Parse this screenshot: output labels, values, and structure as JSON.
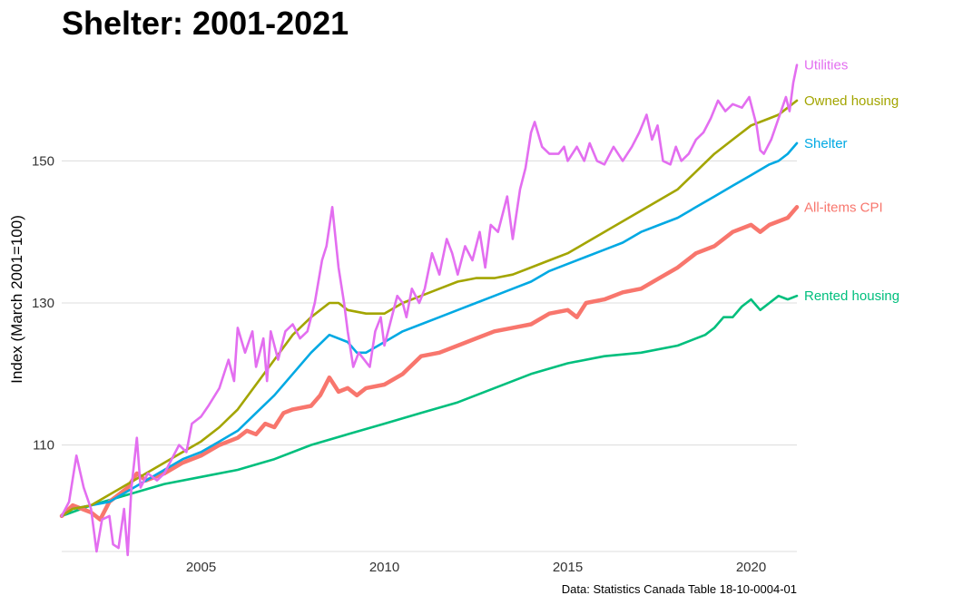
{
  "chart_data": {
    "type": "line",
    "title": "Shelter: 2001-2021",
    "ylabel": "Index (March 2001=100)",
    "xlabel": "",
    "caption": "Data: Statistics Canada Table 18-10-0004-01",
    "xlim": [
      2001.2,
      2021.25
    ],
    "ylim": [
      95,
      165
    ],
    "x_ticks": [
      2005,
      2010,
      2015,
      2020
    ],
    "y_ticks": [
      110,
      130,
      150
    ],
    "grid": "horizontal",
    "legend": "direct labels at right end of lines",
    "series": [
      {
        "name": "Utilities",
        "color": "#E36EF0",
        "points": [
          [
            2001.2,
            100
          ],
          [
            2001.4,
            102
          ],
          [
            2001.6,
            108.5
          ],
          [
            2001.8,
            104
          ],
          [
            2002.0,
            101
          ],
          [
            2002.15,
            95
          ],
          [
            2002.3,
            99.5
          ],
          [
            2002.5,
            100
          ],
          [
            2002.6,
            96
          ],
          [
            2002.75,
            95.5
          ],
          [
            2002.9,
            101
          ],
          [
            2003.0,
            94.5
          ],
          [
            2003.1,
            104
          ],
          [
            2003.25,
            111
          ],
          [
            2003.35,
            104
          ],
          [
            2003.55,
            106
          ],
          [
            2003.8,
            105
          ],
          [
            2004.0,
            106
          ],
          [
            2004.2,
            108
          ],
          [
            2004.4,
            110
          ],
          [
            2004.6,
            109
          ],
          [
            2004.75,
            113
          ],
          [
            2005.0,
            114
          ],
          [
            2005.2,
            115.5
          ],
          [
            2005.5,
            118
          ],
          [
            2005.75,
            122
          ],
          [
            2005.9,
            119
          ],
          [
            2006.0,
            126.5
          ],
          [
            2006.2,
            123
          ],
          [
            2006.4,
            126
          ],
          [
            2006.5,
            121
          ],
          [
            2006.7,
            125
          ],
          [
            2006.8,
            119
          ],
          [
            2006.9,
            126
          ],
          [
            2007.1,
            122
          ],
          [
            2007.3,
            126
          ],
          [
            2007.5,
            127
          ],
          [
            2007.7,
            125
          ],
          [
            2007.9,
            126
          ],
          [
            2008.1,
            130
          ],
          [
            2008.3,
            136
          ],
          [
            2008.42,
            138
          ],
          [
            2008.58,
            143.5
          ],
          [
            2008.75,
            135
          ],
          [
            2008.9,
            130
          ],
          [
            2009.0,
            126
          ],
          [
            2009.15,
            121
          ],
          [
            2009.3,
            123
          ],
          [
            2009.45,
            122
          ],
          [
            2009.6,
            121
          ],
          [
            2009.75,
            126
          ],
          [
            2009.9,
            128
          ],
          [
            2010.0,
            124
          ],
          [
            2010.15,
            127
          ],
          [
            2010.35,
            131
          ],
          [
            2010.5,
            130
          ],
          [
            2010.6,
            128
          ],
          [
            2010.75,
            132
          ],
          [
            2010.95,
            130
          ],
          [
            2011.1,
            132
          ],
          [
            2011.3,
            137
          ],
          [
            2011.5,
            134
          ],
          [
            2011.7,
            139
          ],
          [
            2011.85,
            137
          ],
          [
            2012.0,
            134
          ],
          [
            2012.2,
            138
          ],
          [
            2012.4,
            136
          ],
          [
            2012.6,
            140
          ],
          [
            2012.75,
            135
          ],
          [
            2012.9,
            141
          ],
          [
            2013.1,
            140
          ],
          [
            2013.35,
            145
          ],
          [
            2013.5,
            139
          ],
          [
            2013.7,
            146
          ],
          [
            2013.85,
            149
          ],
          [
            2014.0,
            154
          ],
          [
            2014.1,
            155.5
          ],
          [
            2014.3,
            152
          ],
          [
            2014.5,
            151
          ],
          [
            2014.75,
            151
          ],
          [
            2014.9,
            152
          ],
          [
            2015.0,
            150
          ],
          [
            2015.25,
            152
          ],
          [
            2015.45,
            150
          ],
          [
            2015.6,
            152.5
          ],
          [
            2015.8,
            150
          ],
          [
            2016.0,
            149.5
          ],
          [
            2016.25,
            152
          ],
          [
            2016.5,
            150
          ],
          [
            2016.75,
            152
          ],
          [
            2016.95,
            154
          ],
          [
            2017.15,
            156.5
          ],
          [
            2017.3,
            153
          ],
          [
            2017.45,
            155
          ],
          [
            2017.6,
            150
          ],
          [
            2017.8,
            149.5
          ],
          [
            2017.95,
            152
          ],
          [
            2018.1,
            150
          ],
          [
            2018.3,
            151
          ],
          [
            2018.5,
            153
          ],
          [
            2018.7,
            154
          ],
          [
            2018.9,
            156
          ],
          [
            2019.1,
            158.5
          ],
          [
            2019.3,
            157
          ],
          [
            2019.5,
            158
          ],
          [
            2019.75,
            157.5
          ],
          [
            2019.95,
            159
          ],
          [
            2020.15,
            155
          ],
          [
            2020.25,
            151.5
          ],
          [
            2020.35,
            151
          ],
          [
            2020.55,
            153
          ],
          [
            2020.75,
            156
          ],
          [
            2020.95,
            159
          ],
          [
            2021.05,
            157
          ],
          [
            2021.15,
            161
          ],
          [
            2021.25,
            163.5
          ]
        ]
      },
      {
        "name": "Owned housing",
        "color": "#A3A500",
        "points": [
          [
            2001.2,
            100
          ],
          [
            2001.5,
            101
          ],
          [
            2002.0,
            101.5
          ],
          [
            2002.5,
            103
          ],
          [
            2003.0,
            104.5
          ],
          [
            2003.5,
            106
          ],
          [
            2004.0,
            107.5
          ],
          [
            2004.5,
            109
          ],
          [
            2005.0,
            110.5
          ],
          [
            2005.5,
            112.5
          ],
          [
            2006.0,
            115
          ],
          [
            2006.5,
            118.5
          ],
          [
            2007.0,
            122
          ],
          [
            2007.5,
            125.5
          ],
          [
            2008.0,
            128
          ],
          [
            2008.5,
            130
          ],
          [
            2008.75,
            130
          ],
          [
            2009.0,
            129
          ],
          [
            2009.5,
            128.5
          ],
          [
            2010.0,
            128.5
          ],
          [
            2010.5,
            130
          ],
          [
            2011.0,
            131
          ],
          [
            2011.5,
            132
          ],
          [
            2012.0,
            133
          ],
          [
            2012.5,
            133.5
          ],
          [
            2013.0,
            133.5
          ],
          [
            2013.5,
            134
          ],
          [
            2014.0,
            135
          ],
          [
            2014.5,
            136
          ],
          [
            2015.0,
            137
          ],
          [
            2015.5,
            138.5
          ],
          [
            2016.0,
            140
          ],
          [
            2016.5,
            141.5
          ],
          [
            2017.0,
            143
          ],
          [
            2017.5,
            144.5
          ],
          [
            2018.0,
            146
          ],
          [
            2018.5,
            148.5
          ],
          [
            2019.0,
            151
          ],
          [
            2019.5,
            153
          ],
          [
            2020.0,
            155
          ],
          [
            2020.5,
            156
          ],
          [
            2020.75,
            156.5
          ],
          [
            2021.0,
            157.5
          ],
          [
            2021.25,
            158.5
          ]
        ]
      },
      {
        "name": "Shelter",
        "color": "#00A9E3",
        "points": [
          [
            2001.2,
            100
          ],
          [
            2001.5,
            101
          ],
          [
            2002.0,
            101.5
          ],
          [
            2002.5,
            102
          ],
          [
            2003.0,
            103.5
          ],
          [
            2003.5,
            105
          ],
          [
            2004.0,
            106.5
          ],
          [
            2004.5,
            108
          ],
          [
            2005.0,
            109
          ],
          [
            2005.5,
            110.5
          ],
          [
            2006.0,
            112
          ],
          [
            2006.5,
            114.5
          ],
          [
            2007.0,
            117
          ],
          [
            2007.5,
            120
          ],
          [
            2008.0,
            123
          ],
          [
            2008.5,
            125.5
          ],
          [
            2009.0,
            124.5
          ],
          [
            2009.25,
            123
          ],
          [
            2009.5,
            123
          ],
          [
            2010.0,
            124.5
          ],
          [
            2010.5,
            126
          ],
          [
            2011.0,
            127
          ],
          [
            2011.5,
            128
          ],
          [
            2012.0,
            129
          ],
          [
            2012.5,
            130
          ],
          [
            2013.0,
            131
          ],
          [
            2013.5,
            132
          ],
          [
            2014.0,
            133
          ],
          [
            2014.5,
            134.5
          ],
          [
            2015.0,
            135.5
          ],
          [
            2015.5,
            136.5
          ],
          [
            2016.0,
            137.5
          ],
          [
            2016.5,
            138.5
          ],
          [
            2017.0,
            140
          ],
          [
            2017.5,
            141
          ],
          [
            2018.0,
            142
          ],
          [
            2018.5,
            143.5
          ],
          [
            2019.0,
            145
          ],
          [
            2019.5,
            146.5
          ],
          [
            2020.0,
            148
          ],
          [
            2020.5,
            149.5
          ],
          [
            2020.75,
            150
          ],
          [
            2021.0,
            151
          ],
          [
            2021.25,
            152.5
          ]
        ]
      },
      {
        "name": "All-items CPI",
        "color": "#F8766D",
        "points": [
          [
            2001.2,
            100
          ],
          [
            2001.5,
            101.5
          ],
          [
            2002.0,
            100.5
          ],
          [
            2002.25,
            99.5
          ],
          [
            2002.5,
            102
          ],
          [
            2002.75,
            103
          ],
          [
            2003.0,
            104
          ],
          [
            2003.25,
            106
          ],
          [
            2003.5,
            105
          ],
          [
            2004.0,
            106
          ],
          [
            2004.5,
            107.5
          ],
          [
            2005.0,
            108.5
          ],
          [
            2005.5,
            110
          ],
          [
            2006.0,
            111
          ],
          [
            2006.25,
            112
          ],
          [
            2006.5,
            111.5
          ],
          [
            2006.75,
            113
          ],
          [
            2007.0,
            112.5
          ],
          [
            2007.25,
            114.5
          ],
          [
            2007.5,
            115
          ],
          [
            2008.0,
            115.5
          ],
          [
            2008.25,
            117
          ],
          [
            2008.5,
            119.5
          ],
          [
            2008.75,
            117.5
          ],
          [
            2009.0,
            118
          ],
          [
            2009.25,
            117
          ],
          [
            2009.5,
            118
          ],
          [
            2010.0,
            118.5
          ],
          [
            2010.5,
            120
          ],
          [
            2011.0,
            122.5
          ],
          [
            2011.5,
            123
          ],
          [
            2012.0,
            124
          ],
          [
            2012.5,
            125
          ],
          [
            2013.0,
            126
          ],
          [
            2013.5,
            126.5
          ],
          [
            2014.0,
            127
          ],
          [
            2014.5,
            128.5
          ],
          [
            2015.0,
            129
          ],
          [
            2015.25,
            128
          ],
          [
            2015.5,
            130
          ],
          [
            2016.0,
            130.5
          ],
          [
            2016.5,
            131.5
          ],
          [
            2017.0,
            132
          ],
          [
            2017.5,
            133.5
          ],
          [
            2018.0,
            135
          ],
          [
            2018.5,
            137
          ],
          [
            2019.0,
            138
          ],
          [
            2019.5,
            140
          ],
          [
            2020.0,
            141
          ],
          [
            2020.25,
            140
          ],
          [
            2020.5,
            141
          ],
          [
            2021.0,
            142
          ],
          [
            2021.25,
            143.5
          ]
        ]
      },
      {
        "name": "Rented housing",
        "color": "#00BF7D",
        "points": [
          [
            2001.2,
            100
          ],
          [
            2002.0,
            101.5
          ],
          [
            2003.0,
            103
          ],
          [
            2004.0,
            104.5
          ],
          [
            2005.0,
            105.5
          ],
          [
            2006.0,
            106.5
          ],
          [
            2007.0,
            108
          ],
          [
            2008.0,
            110
          ],
          [
            2009.0,
            111.5
          ],
          [
            2010.0,
            113
          ],
          [
            2011.0,
            114.5
          ],
          [
            2012.0,
            116
          ],
          [
            2013.0,
            118
          ],
          [
            2014.0,
            120
          ],
          [
            2015.0,
            121.5
          ],
          [
            2016.0,
            122.5
          ],
          [
            2017.0,
            123
          ],
          [
            2018.0,
            124
          ],
          [
            2018.75,
            125.5
          ],
          [
            2019.0,
            126.5
          ],
          [
            2019.25,
            128
          ],
          [
            2019.5,
            128
          ],
          [
            2019.75,
            129.5
          ],
          [
            2020.0,
            130.5
          ],
          [
            2020.25,
            129
          ],
          [
            2020.5,
            130
          ],
          [
            2020.75,
            131
          ],
          [
            2021.0,
            130.5
          ],
          [
            2021.25,
            131
          ]
        ]
      }
    ]
  }
}
